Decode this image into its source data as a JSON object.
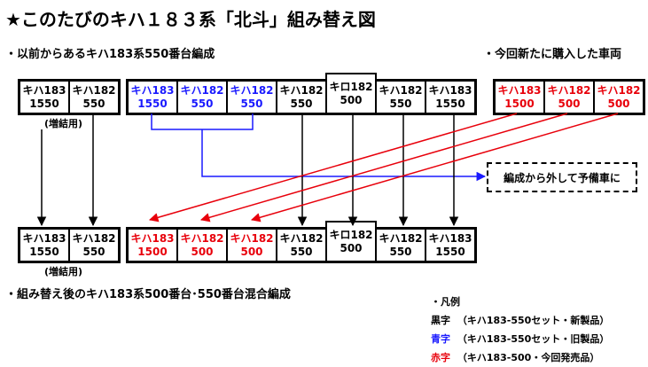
{
  "title": "★このたびのキハ１８３系「北斗」組み替え図",
  "section_existing": "・以前からあるキハ183系550番台編成",
  "section_new": "・今回新たに購入した車両",
  "section_after": "・組み替え後のキハ183系500番台･550番台混合編成",
  "colors": {
    "black": "#000000",
    "blue": "#1a1aff",
    "red": "#e8000b"
  },
  "before_left": [
    {
      "name": "キハ183",
      "num": "1550",
      "color": "black"
    },
    {
      "name": "キハ182",
      "num": "550",
      "color": "black"
    }
  ],
  "before_main": [
    {
      "name": "キハ183",
      "num": "1550",
      "color": "blue"
    },
    {
      "name": "キハ182",
      "num": "550",
      "color": "blue"
    },
    {
      "name": "キハ182",
      "num": "550",
      "color": "blue"
    },
    {
      "name": "キハ182",
      "num": "550",
      "color": "black"
    },
    {
      "name": "キロ182",
      "num": "500",
      "color": "black"
    },
    {
      "name": "キハ182",
      "num": "550",
      "color": "black"
    },
    {
      "name": "キハ183",
      "num": "1550",
      "color": "black"
    }
  ],
  "new_cars": [
    {
      "name": "キハ183",
      "num": "1500",
      "color": "red"
    },
    {
      "name": "キハ182",
      "num": "500",
      "color": "red"
    },
    {
      "name": "キハ182",
      "num": "500",
      "color": "red"
    }
  ],
  "after_left": [
    {
      "name": "キハ183",
      "num": "1550",
      "color": "black"
    },
    {
      "name": "キハ182",
      "num": "550",
      "color": "black"
    }
  ],
  "after_main": [
    {
      "name": "キハ183",
      "num": "1500",
      "color": "red"
    },
    {
      "name": "キハ182",
      "num": "500",
      "color": "red"
    },
    {
      "name": "キハ182",
      "num": "500",
      "color": "red"
    },
    {
      "name": "キハ182",
      "num": "550",
      "color": "black"
    },
    {
      "name": "キロ182",
      "num": "500",
      "color": "black"
    },
    {
      "name": "キハ182",
      "num": "550",
      "color": "black"
    },
    {
      "name": "キハ183",
      "num": "1550",
      "color": "black"
    }
  ],
  "note_additional_top": "(増結用)",
  "note_additional_bottom": "(増結用)",
  "spare_box": "編成から外して予備車に",
  "legend": {
    "title": "・凡例",
    "rows": [
      {
        "key": "黒字",
        "desc": "（キハ183-550セット・新製品）",
        "color": "black"
      },
      {
        "key": "青字",
        "desc": "（キハ183-550セット・旧製品）",
        "color": "blue"
      },
      {
        "key": "赤字",
        "desc": "（キハ183-500・今回発売品）",
        "color": "red"
      }
    ]
  }
}
